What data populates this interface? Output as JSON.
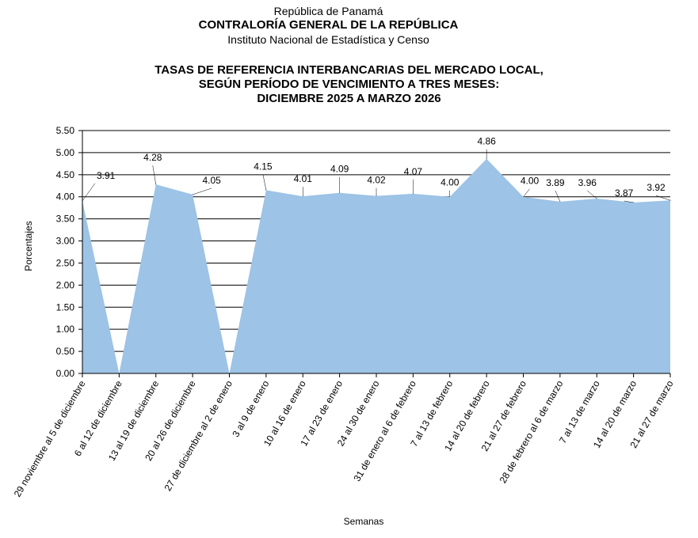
{
  "header": {
    "line1": "República de Panamá",
    "line2": "CONTRALORÍA GENERAL DE LA REPÚBLICA",
    "line3": "Instituto  Nacional de Estadística y Censo"
  },
  "chart_data": {
    "type": "area",
    "title": [
      "TASAS DE REFERENCIA INTERBANCARIAS DEL MERCADO LOCAL,",
      "SEGÚN PERÍODO DE VENCIMIENTO A TRES MESES:",
      "DICIEMBRE 2025 A MARZO 2026"
    ],
    "xlabel": "Semanas",
    "ylabel": "Porcentajes",
    "ylim": [
      0,
      5.5
    ],
    "yticks": [
      "0.00",
      "0.50",
      "1.00",
      "1.50",
      "2.00",
      "2.50",
      "3.00",
      "3.50",
      "4.00",
      "4.50",
      "5.00",
      "5.50"
    ],
    "grid": true,
    "fill_color": "#9dc3e6",
    "categories": [
      "29 noviembre al 5 de diciembre",
      "6 al 12 de diciembre",
      "13 al 19 de diciembre",
      "20 al 26 de diciembre",
      "27 de diciembre al 2 de enero",
      "3 al 9 de enero",
      "10 al 16 de enero",
      "17 al 23 de enero",
      "24 al 30 de enero",
      "31 de enero al 6 de febrero",
      "7 al 13 de febrero",
      "14 al 20 de febrero",
      "21 al 27 de febrero",
      "28 de febrero al 6 de marzo",
      "7 al 13 de marzo",
      "14 al 20 de marzo",
      "21 al 27 de marzo"
    ],
    "values": [
      3.91,
      0,
      4.28,
      4.05,
      0,
      4.15,
      4.01,
      4.09,
      4.02,
      4.07,
      4.0,
      4.86,
      4.0,
      3.89,
      3.96,
      3.87,
      3.92
    ],
    "data_labels": [
      "3.91",
      "",
      "4.28",
      "4.05",
      "",
      "4.15",
      "4.01",
      "4.09",
      "4.02",
      "4.07",
      "4.00",
      "4.86",
      "4.00",
      "3.89",
      "3.96",
      "3.87",
      "3.92"
    ]
  }
}
